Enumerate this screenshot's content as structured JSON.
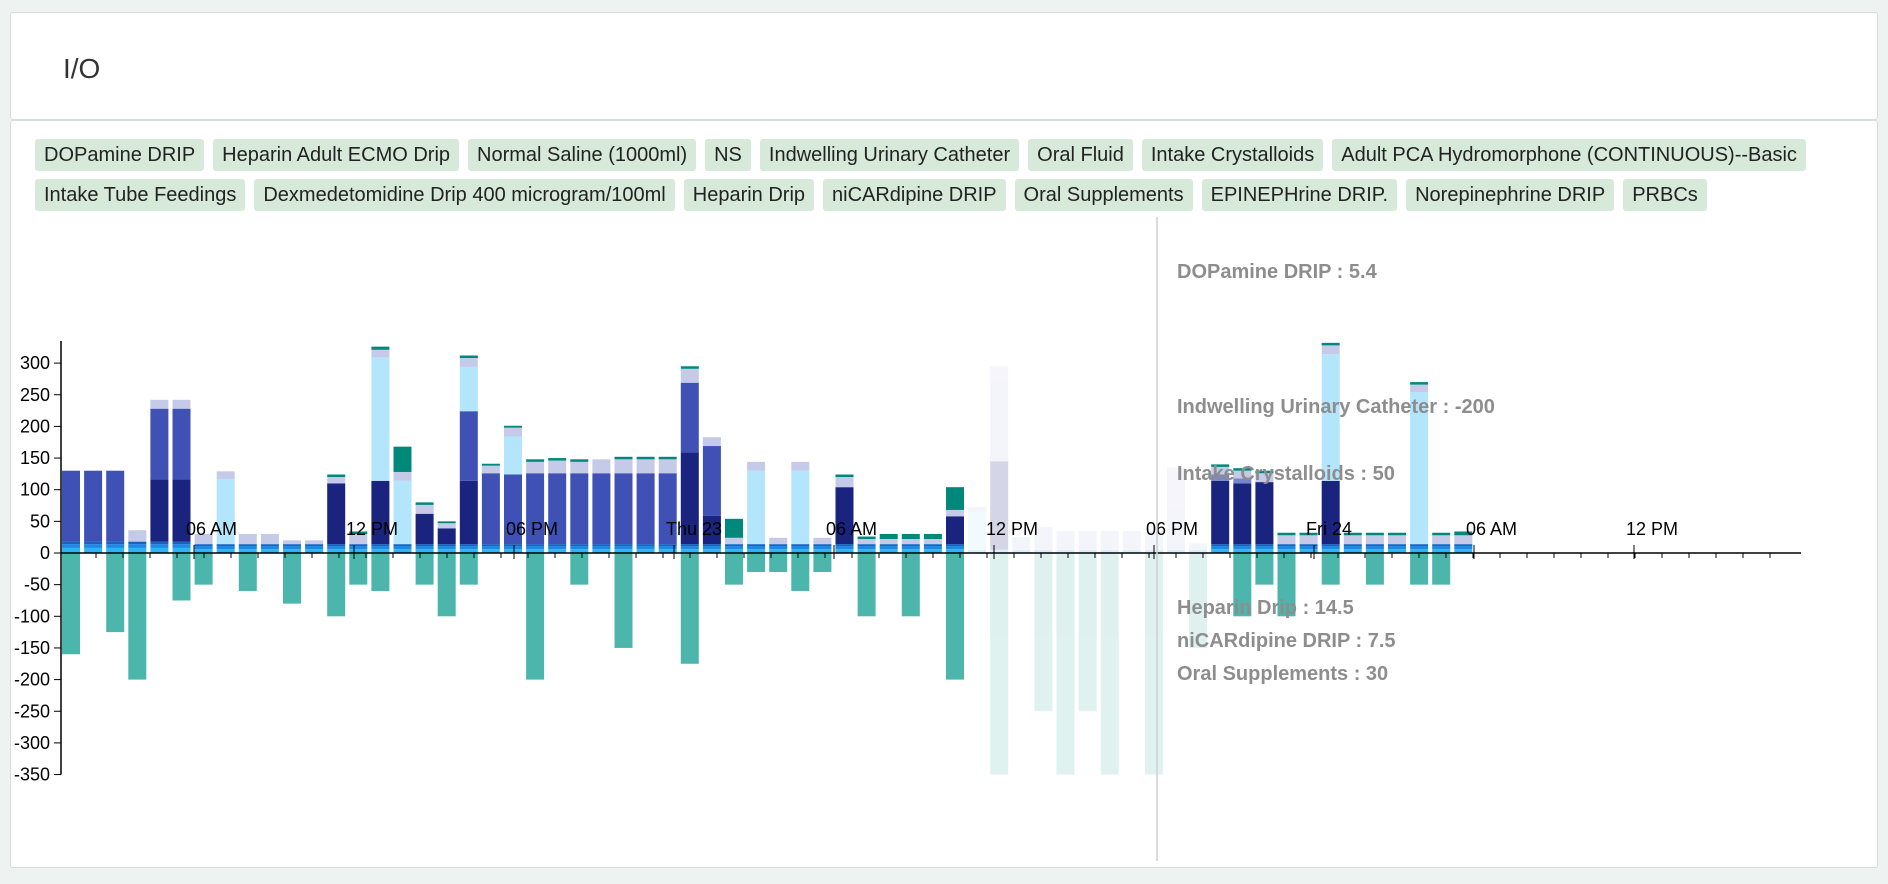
{
  "header": {
    "title": "I/O"
  },
  "legend": [
    "DOPamine DRIP",
    "Heparin Adult ECMO Drip",
    "Normal Saline (1000ml)",
    "NS",
    "Indwelling Urinary Catheter",
    "Oral Fluid",
    "Intake Crystalloids",
    "Adult PCA Hydromorphone (CONTINUOUS)--Basic",
    "Intake Tube Feedings",
    "Dexmedetomidine Drip 400 microgram/100ml",
    "Heparin Drip",
    "niCARdipine DRIP",
    "Oral Supplements",
    "EPINEPHrine DRIP.",
    "Norepinephrine DRIP",
    "PRBCs"
  ],
  "tooltip": {
    "dopamine": "DOPamine DRIP : 5.4",
    "urinary": "Indwelling Urinary Catheter : -200",
    "crystalloids": "Intake Crystalloids : 50",
    "heparin": "Heparin Drip : 14.5",
    "nicardipine": "niCARdipine DRIP : 7.5",
    "supplements": "Oral Supplements : 30"
  },
  "colors": {
    "drip_light": "#29b6f6",
    "drip_mid": "#1e88e5",
    "drip_dark": "#1565c0",
    "navy": "#1a237e",
    "indigo": "#3f51b5",
    "lavender": "#7986cb",
    "pale_lavender": "#c5cae9",
    "light_blue": "#b3e5fc",
    "teal": "#00897b",
    "output_teal": "#4db6ac"
  },
  "chart_data": {
    "type": "bar",
    "stacked": true,
    "y_ticks": [
      300,
      250,
      200,
      150,
      100,
      50,
      0,
      -50,
      -100,
      -150,
      -200,
      -250,
      -300,
      -350
    ],
    "ylim": [
      -350,
      335
    ],
    "x_ticks": [
      "06 AM",
      "12 PM",
      "06 PM",
      "Thu 23",
      "06 AM",
      "12 PM",
      "06 PM",
      "Fri 24",
      "06 AM",
      "12 PM"
    ],
    "series": [
      {
        "key": "base",
        "name": "DOPamine DRIP",
        "color": "drip_light"
      },
      {
        "key": "base2",
        "name": "Heparin Drip",
        "color": "drip_mid"
      },
      {
        "key": "base3",
        "name": "niCARdipine DRIP",
        "color": "drip_dark"
      },
      {
        "key": "dark",
        "name": "Oral Fluid",
        "color": "navy"
      },
      {
        "key": "ind",
        "name": "Intake Crystalloids",
        "color": "indigo"
      },
      {
        "key": "lb",
        "name": "Oral Supplements",
        "color": "light_blue"
      },
      {
        "key": "lav",
        "name": "Normal Saline (1000ml)",
        "color": "lavender"
      },
      {
        "key": "pale",
        "name": "NS",
        "color": "pale_lavender"
      },
      {
        "key": "tealc",
        "name": "PRBCs",
        "color": "teal"
      },
      {
        "key": "out",
        "name": "Indwelling Urinary Catheter",
        "color": "output_teal"
      }
    ],
    "bars": [
      {
        "x": 0,
        "base": 8,
        "base2": 6,
        "base3": 4,
        "ind": 112,
        "out": -160
      },
      {
        "x": 1,
        "base": 8,
        "base2": 6,
        "base3": 4,
        "ind": 112
      },
      {
        "x": 2,
        "base": 8,
        "base2": 6,
        "base3": 4,
        "ind": 112,
        "out": -125
      },
      {
        "x": 3,
        "base": 8,
        "base2": 6,
        "base3": 4,
        "pale": 18,
        "out": -200
      },
      {
        "x": 4,
        "base": 8,
        "base2": 6,
        "base3": 4,
        "dark": 98,
        "ind": 112,
        "pale": 14
      },
      {
        "x": 5,
        "base": 8,
        "base2": 6,
        "base3": 4,
        "dark": 98,
        "ind": 112,
        "pale": 14,
        "out": -75
      },
      {
        "x": 6,
        "base": 6,
        "base2": 5,
        "base3": 3,
        "pale": 16,
        "out": -50
      },
      {
        "x": 7,
        "base": 6,
        "base2": 5,
        "base3": 3,
        "lb": 103,
        "pale": 12
      },
      {
        "x": 8,
        "base": 6,
        "base2": 5,
        "base3": 3,
        "pale": 16,
        "out": -60
      },
      {
        "x": 9,
        "base": 6,
        "base2": 5,
        "base3": 3,
        "pale": 16
      },
      {
        "x": 10,
        "base": 6,
        "base2": 5,
        "base3": 3,
        "pale": 6,
        "out": -80
      },
      {
        "x": 11,
        "base": 6,
        "base2": 5,
        "base3": 3,
        "pale": 6
      },
      {
        "x": 12,
        "base": 6,
        "base2": 5,
        "base3": 3,
        "dark": 96,
        "pale": 10,
        "tealc": 4,
        "out": -100
      },
      {
        "x": 13,
        "base": 6,
        "base2": 5,
        "base3": 3,
        "pale": 16,
        "tealc": 4,
        "out": -50
      },
      {
        "x": 14,
        "base": 6,
        "base2": 5,
        "base3": 3,
        "dark": 100,
        "lb": 195,
        "pale": 12,
        "tealc": 5,
        "out": -60
      },
      {
        "x": 15,
        "base": 6,
        "base2": 5,
        "base3": 3,
        "lb": 100,
        "pale": 14,
        "tealc": 40
      },
      {
        "x": 16,
        "base": 6,
        "base2": 5,
        "base3": 3,
        "dark": 48,
        "pale": 14,
        "tealc": 4,
        "out": -50
      },
      {
        "x": 17,
        "base": 6,
        "base2": 5,
        "base3": 3,
        "dark": 25,
        "pale": 8,
        "tealc": 3,
        "out": -100
      },
      {
        "x": 18,
        "base": 6,
        "base2": 5,
        "base3": 3,
        "dark": 100,
        "lb": 70,
        "ind": 110,
        "pale": 14,
        "tealc": 4,
        "out": -50
      },
      {
        "x": 19,
        "base": 6,
        "base2": 5,
        "base3": 3,
        "ind": 112,
        "pale": 12,
        "tealc": 3
      },
      {
        "x": 20,
        "base": 6,
        "base2": 5,
        "base3": 3,
        "lb": 60,
        "ind": 110,
        "pale": 14,
        "tealc": 3
      },
      {
        "x": 21,
        "base": 6,
        "base2": 5,
        "base3": 3,
        "ind": 112,
        "pale": 18,
        "tealc": 4,
        "out": -200
      },
      {
        "x": 22,
        "base": 6,
        "base2": 5,
        "base3": 3,
        "ind": 112,
        "pale": 20,
        "tealc": 4
      },
      {
        "x": 23,
        "base": 6,
        "base2": 5,
        "base3": 3,
        "ind": 112,
        "pale": 18,
        "tealc": 4,
        "out": -50
      },
      {
        "x": 24,
        "base": 6,
        "base2": 5,
        "base3": 3,
        "ind": 112,
        "pale": 22
      },
      {
        "x": 25,
        "base": 6,
        "base2": 5,
        "base3": 3,
        "ind": 112,
        "pale": 22,
        "tealc": 4,
        "out": -150
      },
      {
        "x": 26,
        "base": 6,
        "base2": 5,
        "base3": 3,
        "ind": 112,
        "pale": 22,
        "tealc": 4
      },
      {
        "x": 27,
        "base": 6,
        "base2": 5,
        "base3": 3,
        "ind": 112,
        "pale": 22,
        "tealc": 4
      },
      {
        "x": 28,
        "base": 6,
        "base2": 5,
        "base3": 3,
        "dark": 145,
        "ind": 110,
        "pale": 22,
        "tealc": 4,
        "out": -175
      },
      {
        "x": 29,
        "base": 6,
        "base2": 5,
        "base3": 3,
        "dark": 45,
        "ind": 110,
        "pale": 14
      },
      {
        "x": 30,
        "base": 6,
        "base2": 5,
        "base3": 3,
        "pale": 10,
        "tealc": 30,
        "out": -50
      },
      {
        "x": 31,
        "base": 6,
        "base2": 5,
        "base3": 3,
        "lb": 116,
        "pale": 14,
        "out": -30
      },
      {
        "x": 32,
        "base": 6,
        "base2": 5,
        "base3": 3,
        "pale": 10,
        "out": -30
      },
      {
        "x": 33,
        "base": 6,
        "base2": 5,
        "base3": 3,
        "lb": 116,
        "pale": 14,
        "out": -60
      },
      {
        "x": 34,
        "base": 6,
        "base2": 5,
        "base3": 3,
        "pale": 10,
        "out": -30
      },
      {
        "x": 35,
        "base": 6,
        "base2": 5,
        "base3": 3,
        "dark": 90,
        "pale": 16,
        "tealc": 4
      },
      {
        "x": 36,
        "base": 6,
        "base2": 5,
        "base3": 3,
        "pale": 8,
        "tealc": 4,
        "out": -100
      },
      {
        "x": 37,
        "base": 6,
        "base2": 5,
        "base3": 3,
        "pale": 8,
        "tealc": 8
      },
      {
        "x": 38,
        "base": 6,
        "base2": 5,
        "base3": 3,
        "pale": 8,
        "tealc": 8,
        "out": -100
      },
      {
        "x": 39,
        "base": 6,
        "base2": 5,
        "base3": 3,
        "pale": 8,
        "tealc": 8
      },
      {
        "x": 40,
        "base": 6,
        "base2": 5,
        "base3": 3,
        "dark": 44,
        "pale": 10,
        "tealc": 36,
        "out": -200
      },
      {
        "x": 41,
        "base": 5,
        "lb": 60,
        "pale": 8,
        "dim": true
      },
      {
        "x": 42,
        "base": 5,
        "dark": 140,
        "pale": 150,
        "dim": true,
        "out": -350
      },
      {
        "x": 43,
        "base": 5,
        "pale": 20,
        "dim": true
      },
      {
        "x": 44,
        "base": 5,
        "pale": 36,
        "dim": true,
        "out": -250
      },
      {
        "x": 45,
        "base": 5,
        "pale": 30,
        "dim": true,
        "out": -350
      },
      {
        "x": 46,
        "base": 5,
        "pale": 30,
        "dim": true,
        "out": -250
      },
      {
        "x": 47,
        "base": 5,
        "pale": 30,
        "dim": true,
        "out": -350
      },
      {
        "x": 48,
        "base": 5,
        "pale": 30,
        "dim": true
      },
      {
        "x": 49,
        "base": 5,
        "pale": 30,
        "dim": true,
        "out": -350
      },
      {
        "x": 50,
        "base": 5,
        "dark": 0,
        "pale": 130,
        "dim": true
      },
      {
        "x": 51,
        "base": 5,
        "pale": 10,
        "dim": true,
        "out": -150
      },
      {
        "x": 52,
        "base": 6,
        "base2": 5,
        "base3": 3,
        "dark": 100,
        "lav": 10,
        "pale": 12,
        "tealc": 4
      },
      {
        "x": 53,
        "base": 6,
        "base2": 5,
        "base3": 3,
        "dark": 96,
        "lav": 8,
        "pale": 12,
        "tealc": 4,
        "out": -100
      },
      {
        "x": 54,
        "base": 6,
        "base2": 5,
        "base3": 3,
        "dark": 98,
        "pale": 14,
        "tealc": 4,
        "out": -50
      },
      {
        "x": 55,
        "base": 6,
        "base2": 5,
        "base3": 3,
        "pale": 14,
        "tealc": 4,
        "out": -100
      },
      {
        "x": 56,
        "base": 6,
        "base2": 5,
        "base3": 3,
        "pale": 14,
        "tealc": 4
      },
      {
        "x": 57,
        "base": 6,
        "base2": 5,
        "base3": 3,
        "dark": 100,
        "lb": 200,
        "pale": 14,
        "tealc": 4,
        "out": -50
      },
      {
        "x": 58,
        "base": 6,
        "base2": 5,
        "base3": 3,
        "pale": 14,
        "tealc": 4
      },
      {
        "x": 59,
        "base": 6,
        "base2": 5,
        "base3": 3,
        "pale": 14,
        "tealc": 4,
        "out": -50
      },
      {
        "x": 60,
        "base": 6,
        "base2": 5,
        "base3": 3,
        "pale": 14,
        "tealc": 4
      },
      {
        "x": 61,
        "base": 6,
        "base2": 5,
        "base3": 3,
        "lb": 240,
        "pale": 12,
        "tealc": 4,
        "out": -50
      },
      {
        "x": 62,
        "base": 6,
        "base2": 5,
        "base3": 3,
        "pale": 14,
        "tealc": 4,
        "out": -50
      },
      {
        "x": 63,
        "base": 6,
        "base2": 5,
        "base3": 3,
        "pale": 14,
        "tealc": 6
      }
    ]
  }
}
